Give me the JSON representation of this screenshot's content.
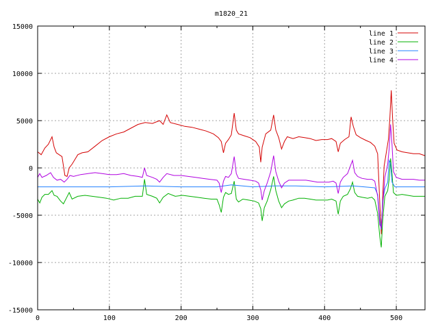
{
  "chart_data": {
    "type": "line",
    "title": "m1820_21",
    "xlabel": "",
    "ylabel": "",
    "xlim": [
      0,
      540
    ],
    "ylim": [
      -15000,
      15000
    ],
    "xticks": [
      0,
      100,
      200,
      300,
      400,
      500
    ],
    "yticks": [
      -15000,
      -10000,
      -5000,
      0,
      5000,
      10000,
      15000
    ],
    "grid": true,
    "legend_position": "top-right",
    "series": [
      {
        "name": "line 1",
        "color": "#d40000",
        "points": [
          [
            0,
            1700
          ],
          [
            5,
            1400
          ],
          [
            10,
            2100
          ],
          [
            15,
            2500
          ],
          [
            20,
            3300
          ],
          [
            23,
            2200
          ],
          [
            26,
            1600
          ],
          [
            30,
            1400
          ],
          [
            34,
            1200
          ],
          [
            38,
            -800
          ],
          [
            41,
            -900
          ],
          [
            44,
            0
          ],
          [
            48,
            400
          ],
          [
            52,
            900
          ],
          [
            56,
            1400
          ],
          [
            62,
            1600
          ],
          [
            70,
            1700
          ],
          [
            80,
            2300
          ],
          [
            90,
            2900
          ],
          [
            100,
            3300
          ],
          [
            110,
            3600
          ],
          [
            120,
            3800
          ],
          [
            130,
            4200
          ],
          [
            140,
            4600
          ],
          [
            150,
            4800
          ],
          [
            160,
            4700
          ],
          [
            170,
            5000
          ],
          [
            175,
            4600
          ],
          [
            180,
            5600
          ],
          [
            185,
            4800
          ],
          [
            195,
            4600
          ],
          [
            205,
            4400
          ],
          [
            215,
            4300
          ],
          [
            225,
            4100
          ],
          [
            235,
            3900
          ],
          [
            245,
            3600
          ],
          [
            252,
            3200
          ],
          [
            256,
            2800
          ],
          [
            259,
            1600
          ],
          [
            262,
            2600
          ],
          [
            266,
            3000
          ],
          [
            270,
            3500
          ],
          [
            274,
            5800
          ],
          [
            277,
            4000
          ],
          [
            280,
            3600
          ],
          [
            288,
            3400
          ],
          [
            296,
            3200
          ],
          [
            304,
            2800
          ],
          [
            309,
            2200
          ],
          [
            311,
            600
          ],
          [
            313,
            2200
          ],
          [
            318,
            3600
          ],
          [
            325,
            4000
          ],
          [
            329,
            5600
          ],
          [
            332,
            4000
          ],
          [
            336,
            3200
          ],
          [
            340,
            2000
          ],
          [
            344,
            2800
          ],
          [
            348,
            3300
          ],
          [
            356,
            3100
          ],
          [
            364,
            3300
          ],
          [
            372,
            3200
          ],
          [
            380,
            3100
          ],
          [
            388,
            2900
          ],
          [
            396,
            3000
          ],
          [
            404,
            3000
          ],
          [
            410,
            3100
          ],
          [
            416,
            2800
          ],
          [
            419,
            1700
          ],
          [
            422,
            2600
          ],
          [
            428,
            3000
          ],
          [
            434,
            3300
          ],
          [
            437,
            5400
          ],
          [
            440,
            4400
          ],
          [
            444,
            3500
          ],
          [
            450,
            3200
          ],
          [
            458,
            2900
          ],
          [
            464,
            2700
          ],
          [
            470,
            2300
          ],
          [
            474,
            1500
          ],
          [
            477,
            -3800
          ],
          [
            479,
            -7000
          ],
          [
            481,
            -3000
          ],
          [
            483,
            200
          ],
          [
            486,
            1600
          ],
          [
            489,
            3000
          ],
          [
            491,
            5200
          ],
          [
            493,
            8200
          ],
          [
            495,
            5000
          ],
          [
            497,
            2600
          ],
          [
            501,
            1900
          ],
          [
            508,
            1700
          ],
          [
            516,
            1600
          ],
          [
            524,
            1500
          ],
          [
            532,
            1500
          ],
          [
            540,
            1300
          ]
        ]
      },
      {
        "name": "line 2",
        "color": "#00b000",
        "points": [
          [
            0,
            -3300
          ],
          [
            3,
            -3700
          ],
          [
            6,
            -3100
          ],
          [
            10,
            -2800
          ],
          [
            15,
            -2800
          ],
          [
            20,
            -2400
          ],
          [
            23,
            -2900
          ],
          [
            27,
            -3000
          ],
          [
            32,
            -3500
          ],
          [
            36,
            -3800
          ],
          [
            40,
            -3200
          ],
          [
            44,
            -2600
          ],
          [
            48,
            -3300
          ],
          [
            56,
            -3000
          ],
          [
            66,
            -2900
          ],
          [
            76,
            -3000
          ],
          [
            86,
            -3100
          ],
          [
            96,
            -3200
          ],
          [
            106,
            -3400
          ],
          [
            116,
            -3200
          ],
          [
            126,
            -3200
          ],
          [
            136,
            -3000
          ],
          [
            146,
            -3000
          ],
          [
            149,
            -1200
          ],
          [
            152,
            -2800
          ],
          [
            160,
            -3000
          ],
          [
            166,
            -3200
          ],
          [
            170,
            -3700
          ],
          [
            175,
            -3100
          ],
          [
            182,
            -2700
          ],
          [
            192,
            -3000
          ],
          [
            202,
            -2900
          ],
          [
            212,
            -3000
          ],
          [
            222,
            -3100
          ],
          [
            232,
            -3200
          ],
          [
            242,
            -3300
          ],
          [
            250,
            -3300
          ],
          [
            253,
            -3900
          ],
          [
            256,
            -4700
          ],
          [
            259,
            -3100
          ],
          [
            262,
            -2600
          ],
          [
            266,
            -2800
          ],
          [
            270,
            -2700
          ],
          [
            274,
            -1400
          ],
          [
            277,
            -3300
          ],
          [
            280,
            -3600
          ],
          [
            286,
            -3300
          ],
          [
            294,
            -3400
          ],
          [
            302,
            -3500
          ],
          [
            308,
            -3700
          ],
          [
            311,
            -4300
          ],
          [
            313,
            -5600
          ],
          [
            316,
            -4200
          ],
          [
            320,
            -3500
          ],
          [
            325,
            -2300
          ],
          [
            329,
            -900
          ],
          [
            332,
            -2400
          ],
          [
            336,
            -3500
          ],
          [
            340,
            -4200
          ],
          [
            344,
            -3800
          ],
          [
            350,
            -3500
          ],
          [
            356,
            -3400
          ],
          [
            364,
            -3200
          ],
          [
            372,
            -3200
          ],
          [
            380,
            -3300
          ],
          [
            388,
            -3400
          ],
          [
            396,
            -3400
          ],
          [
            404,
            -3400
          ],
          [
            410,
            -3300
          ],
          [
            416,
            -3500
          ],
          [
            419,
            -4900
          ],
          [
            422,
            -3500
          ],
          [
            426,
            -3000
          ],
          [
            432,
            -2800
          ],
          [
            436,
            -2200
          ],
          [
            439,
            -1500
          ],
          [
            442,
            -2600
          ],
          [
            446,
            -3000
          ],
          [
            452,
            -3100
          ],
          [
            460,
            -3200
          ],
          [
            466,
            -3100
          ],
          [
            470,
            -3400
          ],
          [
            474,
            -4800
          ],
          [
            477,
            -7300
          ],
          [
            479,
            -8400
          ],
          [
            481,
            -5500
          ],
          [
            484,
            -3000
          ],
          [
            488,
            -2400
          ],
          [
            490,
            -1200
          ],
          [
            492,
            1000
          ],
          [
            494,
            -600
          ],
          [
            496,
            -2600
          ],
          [
            500,
            -2900
          ],
          [
            508,
            -2800
          ],
          [
            516,
            -2900
          ],
          [
            524,
            -3000
          ],
          [
            532,
            -3000
          ],
          [
            540,
            -3000
          ]
        ]
      },
      {
        "name": "line 3",
        "color": "#2080ff",
        "points": [
          [
            0,
            -2000
          ],
          [
            40,
            -2000
          ],
          [
            100,
            -2000
          ],
          [
            150,
            -1900
          ],
          [
            200,
            -2000
          ],
          [
            250,
            -2000
          ],
          [
            270,
            -1800
          ],
          [
            300,
            -2000
          ],
          [
            330,
            -1900
          ],
          [
            360,
            -1900
          ],
          [
            400,
            -2000
          ],
          [
            440,
            -1900
          ],
          [
            470,
            -2100
          ],
          [
            474,
            -2800
          ],
          [
            477,
            -5500
          ],
          [
            479,
            -6500
          ],
          [
            481,
            -3500
          ],
          [
            484,
            -2200
          ],
          [
            488,
            -1500
          ],
          [
            490,
            800
          ],
          [
            492,
            500
          ],
          [
            494,
            -1500
          ],
          [
            498,
            -2000
          ],
          [
            540,
            -2000
          ]
        ]
      },
      {
        "name": "line 4",
        "color": "#b000e0",
        "points": [
          [
            0,
            -1000
          ],
          [
            3,
            -600
          ],
          [
            6,
            -1000
          ],
          [
            12,
            -800
          ],
          [
            18,
            -500
          ],
          [
            22,
            -1000
          ],
          [
            27,
            -1300
          ],
          [
            32,
            -1200
          ],
          [
            37,
            -1500
          ],
          [
            41,
            -1200
          ],
          [
            45,
            -800
          ],
          [
            50,
            -900
          ],
          [
            60,
            -700
          ],
          [
            70,
            -600
          ],
          [
            80,
            -500
          ],
          [
            90,
            -600
          ],
          [
            100,
            -700
          ],
          [
            110,
            -700
          ],
          [
            120,
            -600
          ],
          [
            130,
            -800
          ],
          [
            140,
            -900
          ],
          [
            146,
            -1000
          ],
          [
            149,
            0
          ],
          [
            152,
            -800
          ],
          [
            160,
            -1000
          ],
          [
            166,
            -1200
          ],
          [
            170,
            -1500
          ],
          [
            175,
            -1000
          ],
          [
            180,
            -600
          ],
          [
            190,
            -800
          ],
          [
            200,
            -800
          ],
          [
            210,
            -900
          ],
          [
            220,
            -1000
          ],
          [
            230,
            -1100
          ],
          [
            240,
            -1200
          ],
          [
            250,
            -1300
          ],
          [
            253,
            -1600
          ],
          [
            256,
            -2600
          ],
          [
            259,
            -1400
          ],
          [
            262,
            -900
          ],
          [
            266,
            -1000
          ],
          [
            270,
            -600
          ],
          [
            274,
            1200
          ],
          [
            277,
            -600
          ],
          [
            280,
            -1100
          ],
          [
            288,
            -1200
          ],
          [
            296,
            -1300
          ],
          [
            304,
            -1400
          ],
          [
            308,
            -1600
          ],
          [
            311,
            -2300
          ],
          [
            313,
            -3400
          ],
          [
            316,
            -2400
          ],
          [
            320,
            -1600
          ],
          [
            325,
            -400
          ],
          [
            329,
            1300
          ],
          [
            332,
            -400
          ],
          [
            336,
            -1400
          ],
          [
            340,
            -2100
          ],
          [
            344,
            -1600
          ],
          [
            350,
            -1300
          ],
          [
            358,
            -1300
          ],
          [
            366,
            -1300
          ],
          [
            374,
            -1300
          ],
          [
            382,
            -1400
          ],
          [
            390,
            -1500
          ],
          [
            398,
            -1500
          ],
          [
            406,
            -1500
          ],
          [
            412,
            -1400
          ],
          [
            416,
            -1600
          ],
          [
            419,
            -2700
          ],
          [
            422,
            -1500
          ],
          [
            426,
            -1000
          ],
          [
            432,
            -600
          ],
          [
            436,
            200
          ],
          [
            439,
            800
          ],
          [
            442,
            -500
          ],
          [
            446,
            -900
          ],
          [
            452,
            -1100
          ],
          [
            460,
            -1200
          ],
          [
            466,
            -1200
          ],
          [
            470,
            -1400
          ],
          [
            474,
            -3000
          ],
          [
            477,
            -6000
          ],
          [
            479,
            -6300
          ],
          [
            481,
            -4000
          ],
          [
            484,
            -1000
          ],
          [
            488,
            400
          ],
          [
            490,
            2000
          ],
          [
            492,
            4600
          ],
          [
            494,
            2500
          ],
          [
            496,
            -400
          ],
          [
            500,
            -1000
          ],
          [
            508,
            -1200
          ],
          [
            516,
            -1200
          ],
          [
            524,
            -1200
          ],
          [
            532,
            -1300
          ],
          [
            540,
            -1300
          ]
        ]
      }
    ]
  }
}
